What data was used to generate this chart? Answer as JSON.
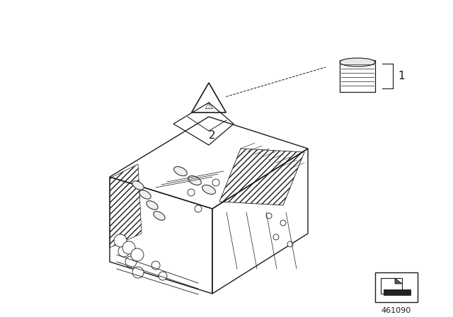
{
  "title": "",
  "background_color": "#ffffff",
  "line_color": "#1a1a1a",
  "label_1": "1",
  "label_2": "2",
  "catalog_number": "461090",
  "fig_width": 6.4,
  "fig_height": 4.48,
  "dpi": 100
}
